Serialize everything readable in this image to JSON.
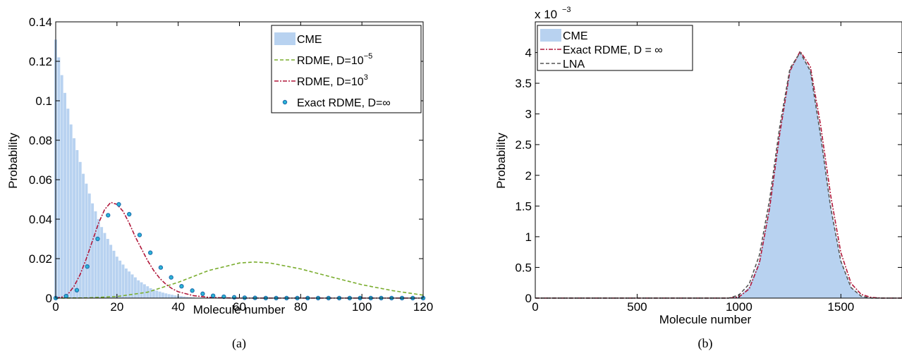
{
  "chart_data": [
    {
      "type": "bar",
      "caption": "(a)",
      "xlabel": "Molecule number",
      "ylabel": "Probability",
      "xlim": [
        0,
        120
      ],
      "ylim": [
        0,
        0.14
      ],
      "xticks": [
        "0",
        "20",
        "40",
        "60",
        "80",
        "100",
        "120"
      ],
      "yticks": [
        "0",
        "0.02",
        "0.04",
        "0.06",
        "0.08",
        "0.1",
        "0.12",
        "0.14"
      ],
      "grid": false,
      "legend_position": "top-right",
      "series": [
        {
          "name": "CME",
          "kind": "bar",
          "color": "#b8d2f0",
          "x": [
            0,
            1,
            2,
            3,
            4,
            5,
            6,
            7,
            8,
            9,
            10,
            11,
            12,
            13,
            14,
            15,
            16,
            17,
            18,
            19,
            20,
            21,
            22,
            23,
            24,
            25,
            26,
            27,
            28,
            29,
            30,
            31,
            32,
            33,
            34,
            35,
            36,
            37,
            38,
            39,
            40,
            41,
            42,
            43,
            44,
            45
          ],
          "y": [
            0.131,
            0.122,
            0.113,
            0.104,
            0.096,
            0.088,
            0.081,
            0.075,
            0.069,
            0.063,
            0.058,
            0.053,
            0.048,
            0.044,
            0.04,
            0.036,
            0.033,
            0.03,
            0.027,
            0.024,
            0.021,
            0.019,
            0.017,
            0.015,
            0.0135,
            0.012,
            0.0105,
            0.009,
            0.008,
            0.007,
            0.006,
            0.005,
            0.0044,
            0.0038,
            0.0033,
            0.0028,
            0.0024,
            0.002,
            0.0017,
            0.0014,
            0.0012,
            0.001,
            0.0008,
            0.0006,
            0.0005,
            0.0004
          ]
        },
        {
          "name": "RDME, D=10",
          "exp": "−5",
          "kind": "line",
          "color": "#7aad2e",
          "dash": "5,3",
          "x": [
            0,
            10,
            20,
            30,
            40,
            50,
            60,
            65,
            70,
            80,
            90,
            100,
            110,
            120
          ],
          "y": [
            0,
            0.0001,
            0.0008,
            0.003,
            0.008,
            0.014,
            0.0178,
            0.0183,
            0.0178,
            0.0148,
            0.0107,
            0.0068,
            0.0038,
            0.0015
          ]
        },
        {
          "name": "RDME, D=10",
          "exp": "3",
          "kind": "line",
          "color": "#b0173a",
          "dash": "6,2,2,2",
          "x": [
            0,
            2,
            4,
            6,
            8,
            10,
            12,
            14,
            16,
            18,
            20,
            22,
            24,
            26,
            28,
            30,
            32,
            34,
            36,
            38,
            40,
            45,
            50,
            55,
            60,
            70,
            80,
            100,
            120
          ],
          "y": [
            0,
            0.0005,
            0.002,
            0.006,
            0.012,
            0.02,
            0.029,
            0.038,
            0.045,
            0.0485,
            0.0475,
            0.044,
            0.038,
            0.031,
            0.025,
            0.019,
            0.014,
            0.01,
            0.007,
            0.0048,
            0.0032,
            0.0012,
            0.0004,
            0.0001,
            0,
            0,
            0,
            0,
            0
          ]
        },
        {
          "name": "Exact RDME, D=∞",
          "kind": "marker",
          "color": "#1f6fb0",
          "fill": "#2ab6d6",
          "x": [
            0,
            3.4,
            6.9,
            10.3,
            13.7,
            17.1,
            20.6,
            24,
            27.4,
            30.9,
            34.3,
            37.7,
            41.1,
            44.6,
            48,
            51.4,
            54.9,
            58.3,
            61.7,
            65.1,
            68.6,
            72,
            75.4,
            78.9,
            82.3,
            85.7,
            89.1,
            92.6,
            96,
            99.4,
            102.9,
            106.3,
            109.7,
            113.1,
            116.6,
            120
          ],
          "y": [
            0,
            0.001,
            0.004,
            0.016,
            0.03,
            0.042,
            0.0475,
            0.0425,
            0.032,
            0.023,
            0.0155,
            0.0105,
            0.006,
            0.0038,
            0.0022,
            0.0012,
            0.0007,
            0.0004,
            0.0002,
            0.0001,
            0,
            0,
            0,
            0,
            0,
            0,
            0,
            0,
            0,
            0,
            0,
            0,
            0,
            0,
            0,
            0
          ]
        }
      ]
    },
    {
      "type": "area",
      "caption": "(b)",
      "xlabel": "Molecule number",
      "ylabel": "Probability",
      "multiplier_base": "x 10",
      "multiplier_exp": "−3",
      "xlim": [
        0,
        1800
      ],
      "ylim": [
        0,
        4.5
      ],
      "xticks": [
        "0",
        "500",
        "1000",
        "1500"
      ],
      "yticks": [
        "0",
        "0.5",
        "1",
        "1.5",
        "2",
        "2.5",
        "3",
        "3.5",
        "4"
      ],
      "grid": false,
      "legend_position": "top-left",
      "series": [
        {
          "name": "CME",
          "kind": "area",
          "color": "#b8d2f0",
          "x": [
            0,
            950,
            1000,
            1050,
            1100,
            1150,
            1200,
            1250,
            1300,
            1350,
            1400,
            1450,
            1500,
            1550,
            1600,
            1650,
            1700,
            1800
          ],
          "y": [
            0,
            0,
            0.03,
            0.18,
            0.62,
            1.52,
            2.72,
            3.72,
            4.0,
            3.72,
            2.72,
            1.52,
            0.62,
            0.18,
            0.03,
            0,
            0,
            0
          ]
        },
        {
          "name": "Exact RDME, D = ∞",
          "kind": "line",
          "color": "#b0173a",
          "dash": "6,2,2,2",
          "x": [
            0,
            950,
            1000,
            1050,
            1100,
            1150,
            1200,
            1250,
            1300,
            1350,
            1400,
            1450,
            1500,
            1550,
            1600,
            1650,
            1700,
            1800
          ],
          "y": [
            0,
            0,
            0.02,
            0.15,
            0.57,
            1.46,
            2.68,
            3.7,
            4.02,
            3.77,
            2.83,
            1.67,
            0.74,
            0.24,
            0.06,
            0.01,
            0,
            0
          ]
        },
        {
          "name": "LNA",
          "kind": "line",
          "color": "#555555",
          "dash": "5,3",
          "x": [
            0,
            950,
            1000,
            1050,
            1100,
            1150,
            1200,
            1250,
            1300,
            1350,
            1400,
            1450,
            1500,
            1550,
            1600,
            1650,
            1700,
            1800
          ],
          "y": [
            0,
            0,
            0.05,
            0.23,
            0.7,
            1.6,
            2.8,
            3.74,
            4.0,
            3.7,
            2.66,
            1.47,
            0.6,
            0.17,
            0.03,
            0,
            0,
            0
          ]
        }
      ]
    }
  ]
}
